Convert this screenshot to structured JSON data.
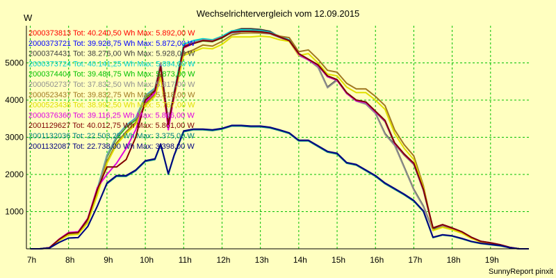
{
  "chart_data": {
    "type": "line",
    "title": "Wechselrichtervergleich vom 12.09.2015",
    "ylabel": "W",
    "footer": "SunnyReport pinxit",
    "ylim": [
      0,
      6000
    ],
    "xlim": [
      6.9,
      20.0
    ],
    "y_ticks": [
      1000,
      2000,
      3000,
      4000,
      5000
    ],
    "x_ticks": [
      {
        "h": 7,
        "label": "7h"
      },
      {
        "h": 8,
        "label": "8h"
      },
      {
        "h": 9,
        "label": "9h"
      },
      {
        "h": 10,
        "label": "10h"
      },
      {
        "h": 11,
        "label": "11h"
      },
      {
        "h": 12,
        "label": "12h"
      },
      {
        "h": 13,
        "label": "13h"
      },
      {
        "h": 14,
        "label": "14h"
      },
      {
        "h": 15,
        "label": "15h"
      },
      {
        "h": 16,
        "label": "16h"
      },
      {
        "h": 17,
        "label": "17h"
      },
      {
        "h": 18,
        "label": "18h"
      },
      {
        "h": 19,
        "label": "19h"
      }
    ],
    "grid": true,
    "legend_position": "top-left",
    "x": [
      7.0,
      7.25,
      7.5,
      7.75,
      8.0,
      8.25,
      8.5,
      8.75,
      9.0,
      9.25,
      9.5,
      9.75,
      10.0,
      10.25,
      10.4,
      10.6,
      10.75,
      11.0,
      11.25,
      11.5,
      11.75,
      12.0,
      12.25,
      12.5,
      12.75,
      13.0,
      13.25,
      13.5,
      13.75,
      14.0,
      14.25,
      14.5,
      14.75,
      15.0,
      15.25,
      15.5,
      15.75,
      16.0,
      16.25,
      16.5,
      16.75,
      17.0,
      17.25,
      17.5,
      17.75,
      18.0,
      18.25,
      18.5,
      18.75,
      19.0,
      19.25,
      19.5,
      19.75,
      20.0
    ],
    "series": [
      {
        "name": "2000373813 Tot: 40.240,50 Wh Max: 5.892,00 W",
        "color": "#ff0000",
        "values": [
          0,
          0,
          30,
          250,
          420,
          440,
          800,
          1600,
          2500,
          3000,
          3300,
          3500,
          4100,
          4300,
          4950,
          3400,
          4200,
          5450,
          5550,
          5620,
          5600,
          5700,
          5850,
          5870,
          5870,
          5860,
          5820,
          5720,
          5620,
          5250,
          5100,
          4950,
          4650,
          4550,
          4200,
          4000,
          3950,
          3700,
          3450,
          2850,
          2550,
          2300,
          1600,
          560,
          650,
          560,
          460,
          310,
          200,
          160,
          110,
          40,
          0,
          0
        ]
      },
      {
        "name": "2000373721 Tot: 39.928,75 Wh Max: 5.872,00 W",
        "color": "#0000ff",
        "values": [
          0,
          0,
          30,
          240,
          410,
          430,
          780,
          1600,
          2480,
          2980,
          3280,
          3480,
          4080,
          4280,
          4920,
          3380,
          4180,
          5430,
          5530,
          5600,
          5580,
          5680,
          5830,
          5850,
          5850,
          5840,
          5800,
          5700,
          5600,
          5230,
          5080,
          4930,
          4630,
          4530,
          4180,
          3980,
          3930,
          3680,
          3430,
          2830,
          2530,
          2280,
          1580,
          550,
          640,
          550,
          450,
          300,
          190,
          150,
          100,
          30,
          0,
          0
        ]
      },
      {
        "name": "2000374431 Tot: 38.276,00 Wh Max: 5.928,00 W",
        "color": "#404040",
        "values": [
          0,
          0,
          30,
          240,
          420,
          430,
          790,
          1600,
          2500,
          3000,
          3300,
          3500,
          4100,
          4300,
          5000,
          3400,
          4200,
          5400,
          5550,
          5620,
          5600,
          5700,
          5850,
          5920,
          5920,
          5900,
          5850,
          5700,
          5600,
          5200,
          5100,
          4900,
          4350,
          4550,
          4200,
          3980,
          3900,
          3650,
          3100,
          2800,
          2200,
          1600,
          1150,
          500,
          640,
          560,
          460,
          310,
          200,
          160,
          110,
          40,
          0,
          0
        ]
      },
      {
        "name": "2000373724 Tot: 40.141,25 Wh Max: 5.894,00 W",
        "color": "#00d0d0",
        "values": [
          0,
          0,
          30,
          250,
          420,
          440,
          800,
          1620,
          2520,
          3020,
          3320,
          3520,
          4120,
          4320,
          4960,
          3420,
          4220,
          5500,
          5600,
          5650,
          5620,
          5720,
          5860,
          5890,
          5880,
          5870,
          5820,
          5720,
          5620,
          5250,
          5100,
          4950,
          4650,
          4550,
          4200,
          4000,
          3950,
          3700,
          3450,
          2850,
          2550,
          2300,
          1600,
          560,
          650,
          560,
          460,
          310,
          200,
          160,
          110,
          40,
          0,
          0
        ]
      },
      {
        "name": "2000374404 Tot: 39.484,75 Wh Max: 5.873,00 W",
        "color": "#00c000",
        "values": [
          0,
          0,
          30,
          245,
          415,
          435,
          790,
          1590,
          2470,
          2970,
          3270,
          3470,
          4070,
          4270,
          4900,
          3380,
          4170,
          5420,
          5520,
          5590,
          5570,
          5670,
          5820,
          5850,
          5850,
          5840,
          5800,
          5700,
          5600,
          5230,
          5080,
          4930,
          4630,
          4530,
          4180,
          3980,
          3930,
          3680,
          3420,
          2820,
          2520,
          2270,
          1570,
          550,
          640,
          550,
          450,
          300,
          190,
          150,
          100,
          30,
          0,
          0
        ]
      },
      {
        "name": "2000502737 Tot: 37.832,50 Wh Max: 5.817,00 W",
        "color": "#909090",
        "values": [
          0,
          0,
          30,
          240,
          420,
          430,
          790,
          1600,
          2500,
          3000,
          3300,
          3500,
          4100,
          4300,
          5000,
          3400,
          4200,
          5400,
          5550,
          5620,
          5600,
          5700,
          5800,
          5810,
          5810,
          5800,
          5780,
          5680,
          5580,
          5200,
          5080,
          4880,
          4330,
          4530,
          4180,
          3970,
          3890,
          3640,
          3080,
          2780,
          2180,
          1580,
          1130,
          490,
          630,
          550,
          450,
          300,
          190,
          150,
          100,
          30,
          0,
          0
        ]
      },
      {
        "name": "2000523437 Tot: 39.832,75 Wh Max: 5.818,00 W",
        "color": "#a07820",
        "values": [
          0,
          0,
          20,
          230,
          380,
          400,
          720,
          1500,
          2350,
          2850,
          3150,
          3400,
          3900,
          4150,
          4700,
          3350,
          4100,
          5250,
          5350,
          5480,
          5450,
          5580,
          5750,
          5800,
          5810,
          5810,
          5800,
          5720,
          5680,
          5300,
          5350,
          5100,
          4800,
          4750,
          4450,
          4300,
          4300,
          4100,
          3850,
          3200,
          2800,
          2500,
          1700,
          500,
          590,
          520,
          430,
          290,
          190,
          150,
          100,
          30,
          0,
          0
        ]
      },
      {
        "name": "2000523438 Tot: 38.992,50 Wh Max: 5.767,00 W",
        "color": "#e0e000",
        "values": [
          0,
          0,
          20,
          220,
          370,
          390,
          700,
          1450,
          2300,
          2800,
          3100,
          3350,
          3850,
          4100,
          4600,
          3300,
          4050,
          5200,
          5300,
          5400,
          5380,
          5500,
          5700,
          5700,
          5700,
          5720,
          5700,
          5620,
          5580,
          5200,
          5250,
          5000,
          4700,
          4650,
          4350,
          4200,
          4200,
          4000,
          3750,
          3100,
          2700,
          2400,
          1650,
          490,
          580,
          510,
          420,
          280,
          180,
          140,
          90,
          30,
          0,
          0
        ]
      },
      {
        "name": "2000376360 Tot: 39.116,25 Wh Max: 5.866,00 W",
        "color": "#e000e0",
        "values": [
          0,
          0,
          30,
          260,
          440,
          460,
          820,
          1650,
          2000,
          2300,
          2700,
          3200,
          3950,
          4200,
          4920,
          3200,
          4100,
          5400,
          5520,
          5600,
          5580,
          5680,
          5830,
          5850,
          5850,
          5840,
          5800,
          5700,
          5600,
          5230,
          5080,
          4930,
          4630,
          4530,
          4180,
          3980,
          3930,
          3680,
          3430,
          2830,
          2530,
          2280,
          1580,
          560,
          650,
          560,
          460,
          310,
          200,
          160,
          110,
          40,
          0,
          0
        ]
      },
      {
        "name": "2001129627 Tot: 40.012,75 Wh Max: 5.861,00 W",
        "color": "#800000",
        "values": [
          0,
          0,
          30,
          250,
          420,
          440,
          800,
          1600,
          2200,
          2200,
          2400,
          3000,
          4000,
          4250,
          4900,
          3350,
          4150,
          5420,
          5520,
          5600,
          5580,
          5680,
          5830,
          5850,
          5850,
          5840,
          5800,
          5700,
          5600,
          5250,
          5100,
          4950,
          4650,
          4550,
          4200,
          4000,
          3950,
          3700,
          3450,
          2850,
          2550,
          2300,
          1600,
          560,
          650,
          560,
          460,
          310,
          200,
          160,
          110,
          40,
          0,
          0
        ]
      },
      {
        "name": "2001132036 Tot: 22.503,25 Wh Max: 3.375,00 W",
        "color": "#008080",
        "values": [
          0,
          0,
          20,
          170,
          290,
          300,
          600,
          1150,
          1750,
          1950,
          1950,
          2100,
          2350,
          2400,
          2800,
          2000,
          2500,
          3150,
          3200,
          3200,
          3180,
          3220,
          3300,
          3300,
          3280,
          3280,
          3250,
          3180,
          3100,
          2900,
          2900,
          2750,
          2600,
          2550,
          2300,
          2250,
          2100,
          1950,
          1750,
          1600,
          1450,
          1280,
          1000,
          300,
          370,
          340,
          270,
          190,
          140,
          110,
          80,
          30,
          0,
          0
        ]
      },
      {
        "name": "2001132087 Tot: 22.738,00 Wh Max: 3.398,00 W",
        "color": "#000080",
        "values": [
          0,
          0,
          20,
          170,
          290,
          300,
          600,
          1150,
          1770,
          1970,
          1970,
          2120,
          2370,
          2420,
          2820,
          2020,
          2520,
          3170,
          3220,
          3220,
          3200,
          3240,
          3320,
          3320,
          3300,
          3300,
          3270,
          3200,
          3120,
          2920,
          2920,
          2770,
          2620,
          2570,
          2320,
          2270,
          2120,
          1970,
          1770,
          1620,
          1470,
          1300,
          1020,
          310,
          380,
          350,
          280,
          200,
          150,
          120,
          90,
          30,
          0,
          0
        ]
      }
    ]
  }
}
